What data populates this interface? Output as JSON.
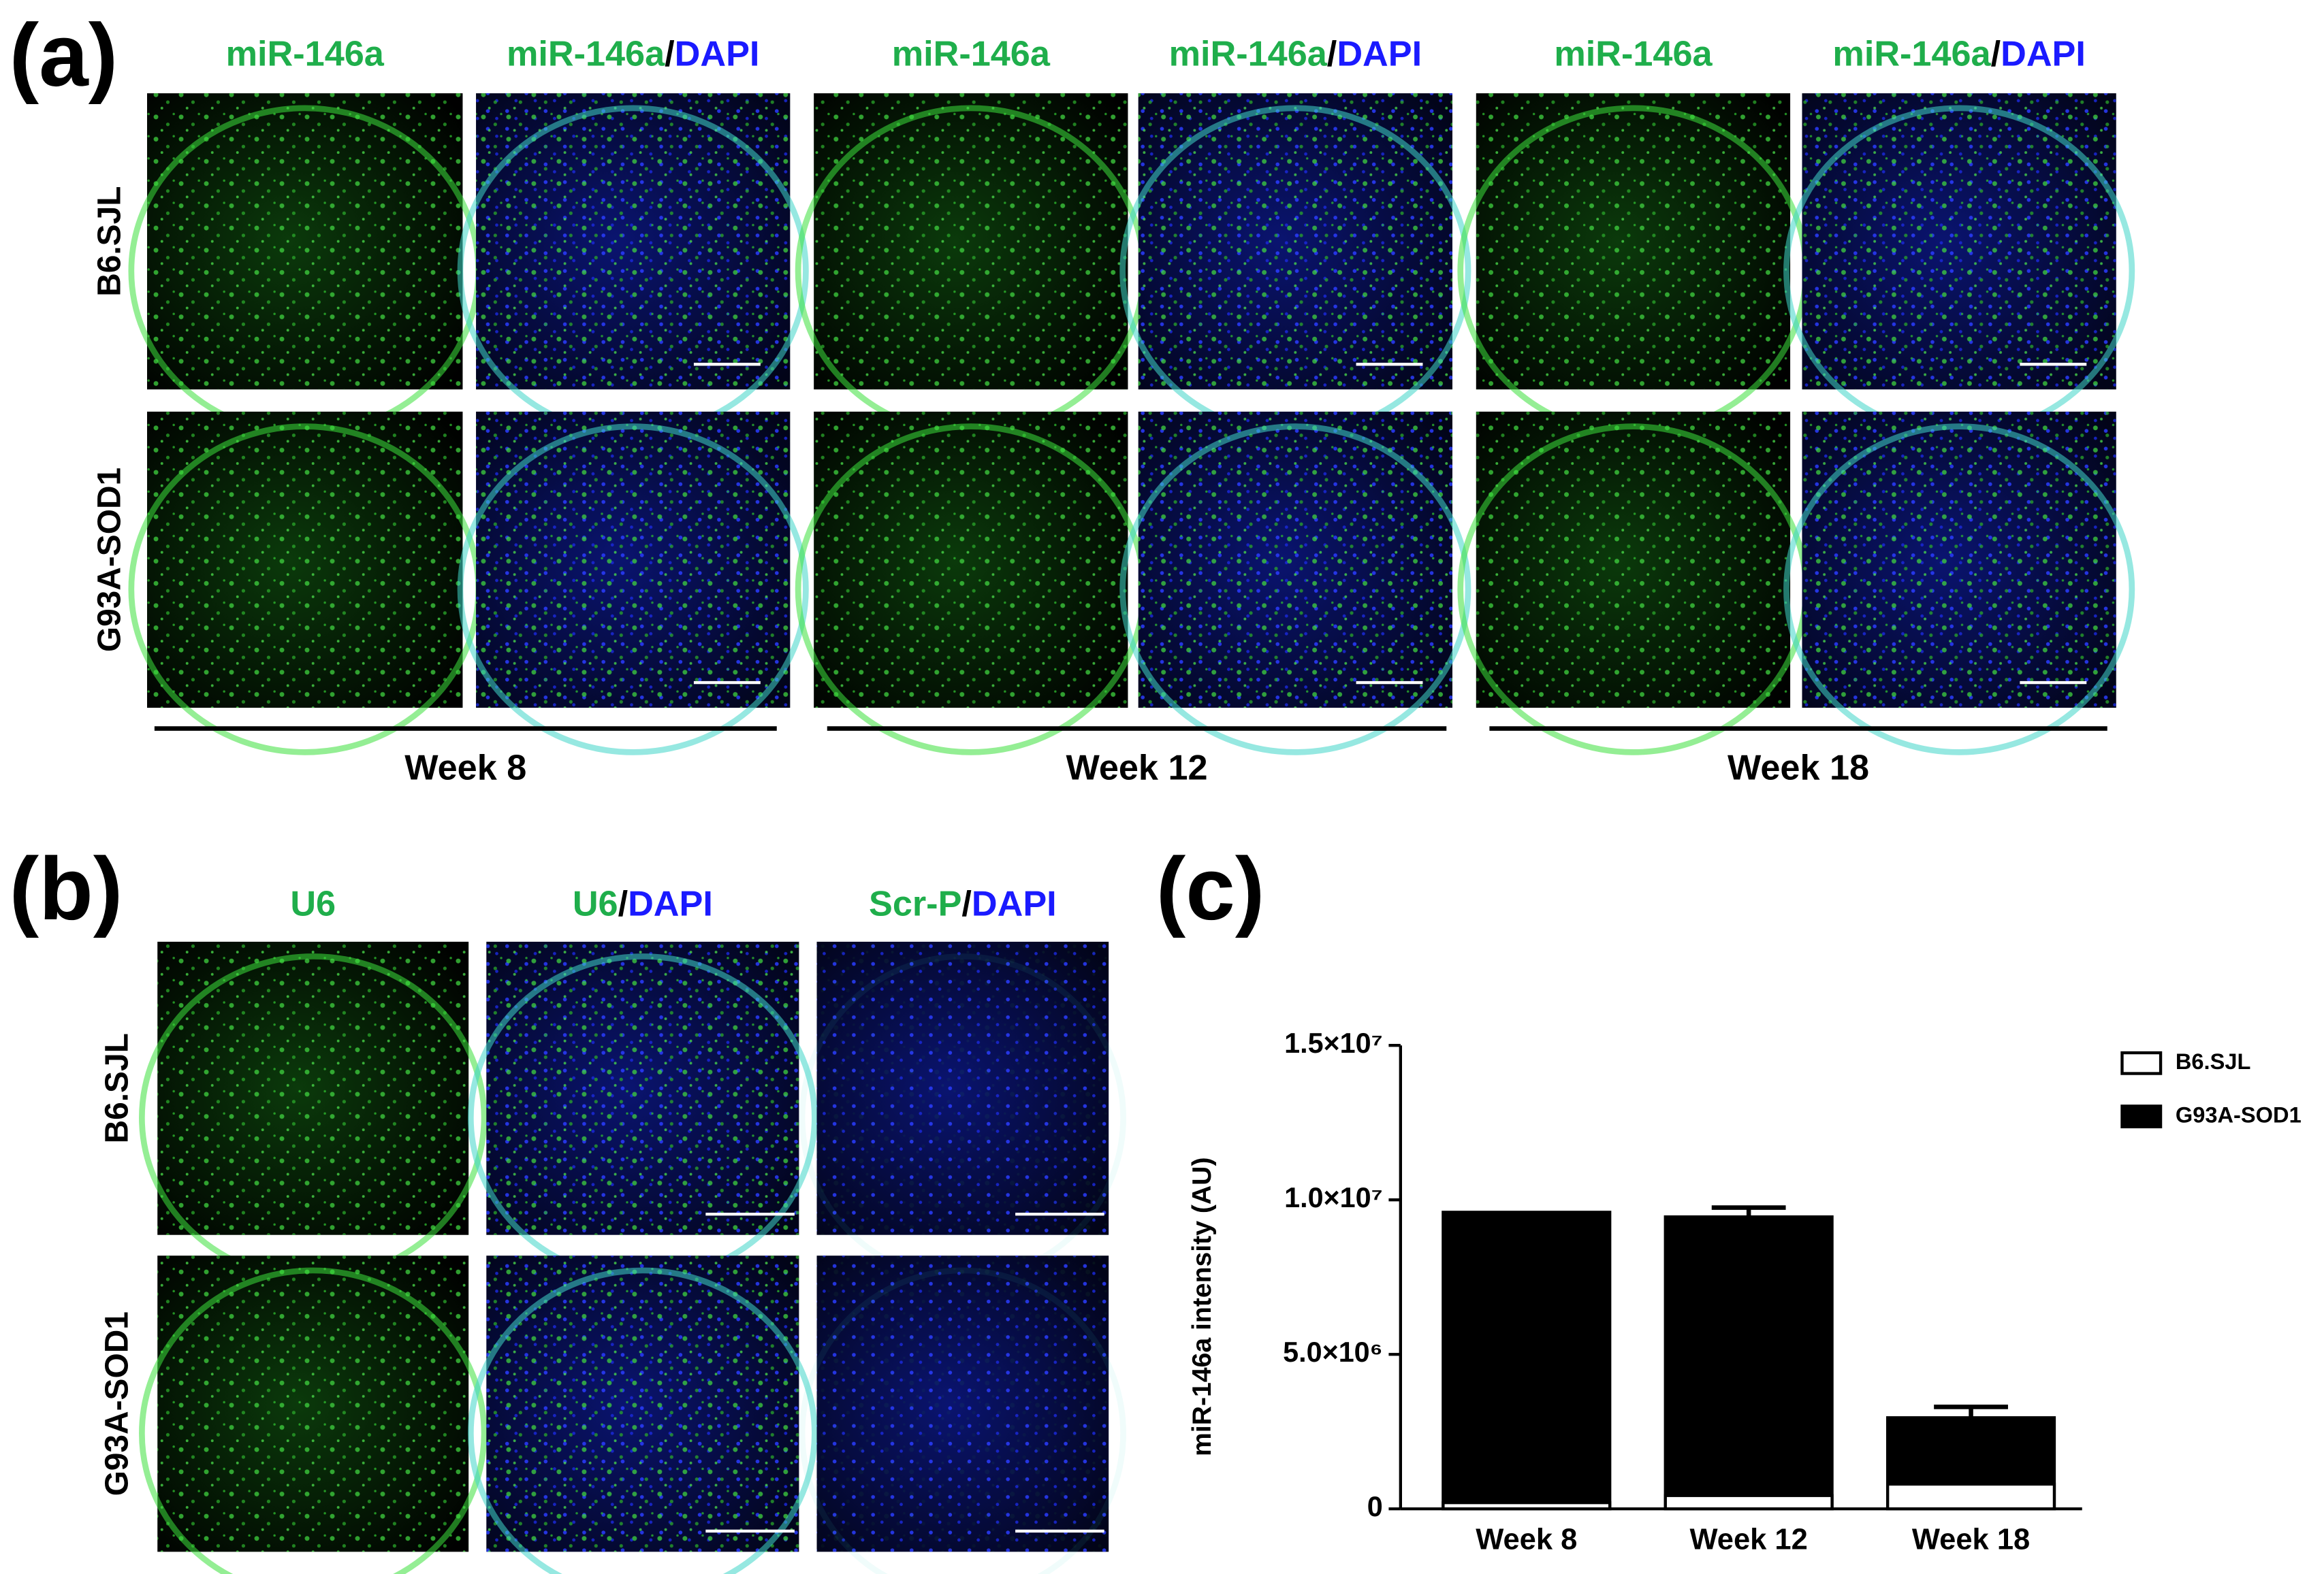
{
  "panels": {
    "a": {
      "label": "(a)",
      "headers": [
        [
          "miR-146a"
        ],
        [
          "miR-146a",
          "/",
          "DAPI"
        ],
        [
          "miR-146a"
        ],
        [
          "miR-146a",
          "/",
          "DAPI"
        ],
        [
          "miR-146a"
        ],
        [
          "miR-146a",
          "/",
          "DAPI"
        ]
      ],
      "rows": [
        "B6.SJL",
        "G93A-SOD1"
      ],
      "groups": [
        "Week 8",
        "Week 12",
        "Week 18"
      ]
    },
    "b": {
      "label": "(b)",
      "headers": [
        [
          "U6"
        ],
        [
          "U6",
          "/",
          "DAPI"
        ],
        [
          "Scr-P",
          "/",
          "DAPI"
        ]
      ],
      "rows": [
        "B6.SJL",
        "G93A-SOD1"
      ]
    }
  },
  "chart_data": {
    "type": "bar",
    "label": "(c)",
    "y_label": "miR-146a  intensity (AU)",
    "categories": [
      "Week 8",
      "Week 12",
      "Week 18"
    ],
    "series": [
      {
        "name": "G93A-SOD1",
        "color": "#000000",
        "values": [
          9600000,
          9450000,
          2950000
        ],
        "errors": [
          null,
          300000,
          350000
        ]
      },
      {
        "name": "B6.SJL",
        "color": "#ffffff",
        "values": [
          200000,
          430000,
          800000
        ]
      }
    ],
    "ylim": [
      0,
      15000000
    ],
    "yticks": [
      0,
      {
        "value": 5000000,
        "label": "5.0×10⁶"
      },
      {
        "value": 10000000,
        "label": "1.0×10⁷"
      },
      {
        "value": 15000000,
        "label": "1.5×10⁷"
      }
    ],
    "legend": "top-right"
  }
}
